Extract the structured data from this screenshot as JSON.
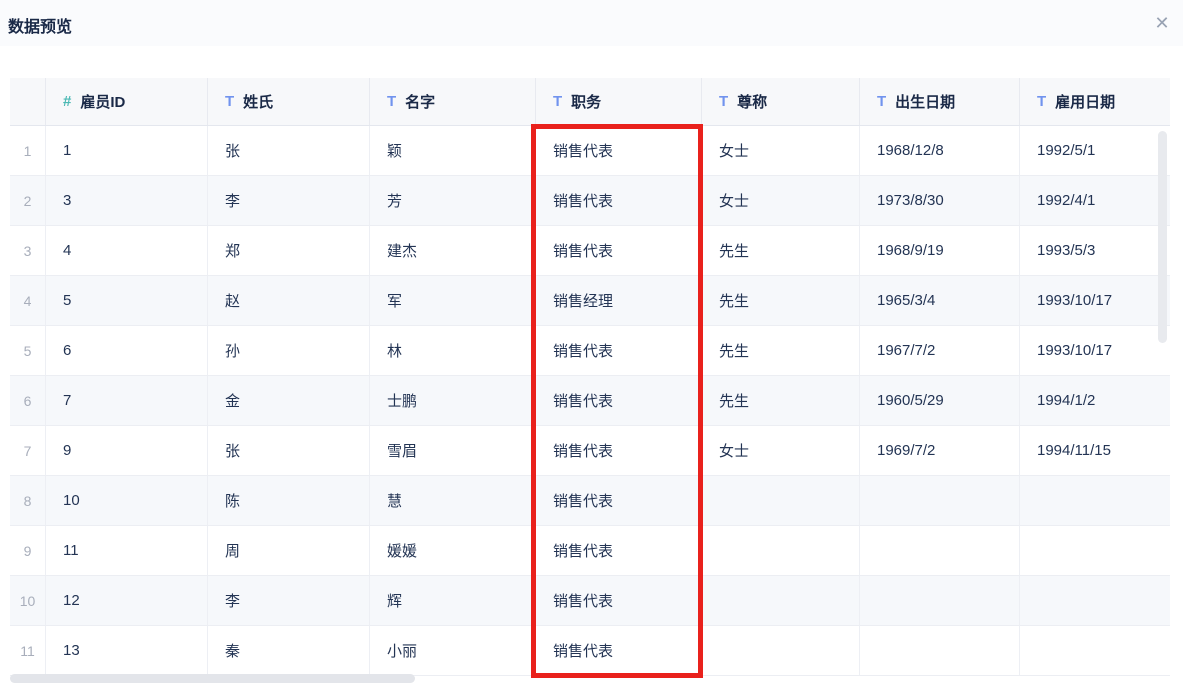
{
  "header": {
    "title": "数据预览",
    "close_icon_glyph": "✕"
  },
  "table": {
    "columns": [
      {
        "name": "employee-id",
        "label": "雇员ID",
        "type": "number",
        "icon": "numeric-type-icon",
        "icon_glyph": "#"
      },
      {
        "name": "last-name",
        "label": "姓氏",
        "type": "text",
        "icon": "text-type-icon",
        "icon_glyph": "T"
      },
      {
        "name": "first-name",
        "label": "名字",
        "type": "text",
        "icon": "text-type-icon",
        "icon_glyph": "T"
      },
      {
        "name": "job-title",
        "label": "职务",
        "type": "text",
        "icon": "text-type-icon",
        "icon_glyph": "T"
      },
      {
        "name": "honorific",
        "label": "尊称",
        "type": "text",
        "icon": "text-type-icon",
        "icon_glyph": "T"
      },
      {
        "name": "birth-date",
        "label": "出生日期",
        "type": "text",
        "icon": "text-type-icon",
        "icon_glyph": "T"
      },
      {
        "name": "hire-date",
        "label": "雇用日期",
        "type": "text",
        "icon": "text-type-icon",
        "icon_glyph": "T"
      }
    ],
    "rows": [
      {
        "num": "1",
        "cells": [
          "1",
          "张",
          "颖",
          "销售代表",
          "女士",
          "1968/12/8",
          "1992/5/1"
        ]
      },
      {
        "num": "2",
        "cells": [
          "3",
          "李",
          "芳",
          "销售代表",
          "女士",
          "1973/8/30",
          "1992/4/1"
        ]
      },
      {
        "num": "3",
        "cells": [
          "4",
          "郑",
          "建杰",
          "销售代表",
          "先生",
          "1968/9/19",
          "1993/5/3"
        ]
      },
      {
        "num": "4",
        "cells": [
          "5",
          "赵",
          "军",
          "销售经理",
          "先生",
          "1965/3/4",
          "1993/10/17"
        ]
      },
      {
        "num": "5",
        "cells": [
          "6",
          "孙",
          "林",
          "销售代表",
          "先生",
          "1967/7/2",
          "1993/10/17"
        ]
      },
      {
        "num": "6",
        "cells": [
          "7",
          "金",
          "士鹏",
          "销售代表",
          "先生",
          "1960/5/29",
          "1994/1/2"
        ]
      },
      {
        "num": "7",
        "cells": [
          "9",
          "张",
          "雪眉",
          "销售代表",
          "女士",
          "1969/7/2",
          "1994/11/15"
        ]
      },
      {
        "num": "8",
        "cells": [
          "10",
          "陈",
          "慧",
          "销售代表",
          "",
          "",
          ""
        ]
      },
      {
        "num": "9",
        "cells": [
          "11",
          "周",
          "媛媛",
          "销售代表",
          "",
          "",
          ""
        ]
      },
      {
        "num": "10",
        "cells": [
          "12",
          "李",
          "辉",
          "销售代表",
          "",
          "",
          ""
        ]
      },
      {
        "num": "11",
        "cells": [
          "13",
          "秦",
          "小丽",
          "销售代表",
          "",
          "",
          ""
        ]
      }
    ]
  },
  "highlight": {
    "column": "职务",
    "color": "#e9211c"
  },
  "colors": {
    "numeric_icon": "#4cb9b4",
    "text_icon": "#7193ee",
    "header_text": "#1a2947",
    "cell_text": "#233454",
    "row_number_text": "#a8aebb",
    "header_background": "#f7f8fa",
    "stripe_background": "#f6f8fb",
    "highlight_red": "#e9211c"
  }
}
